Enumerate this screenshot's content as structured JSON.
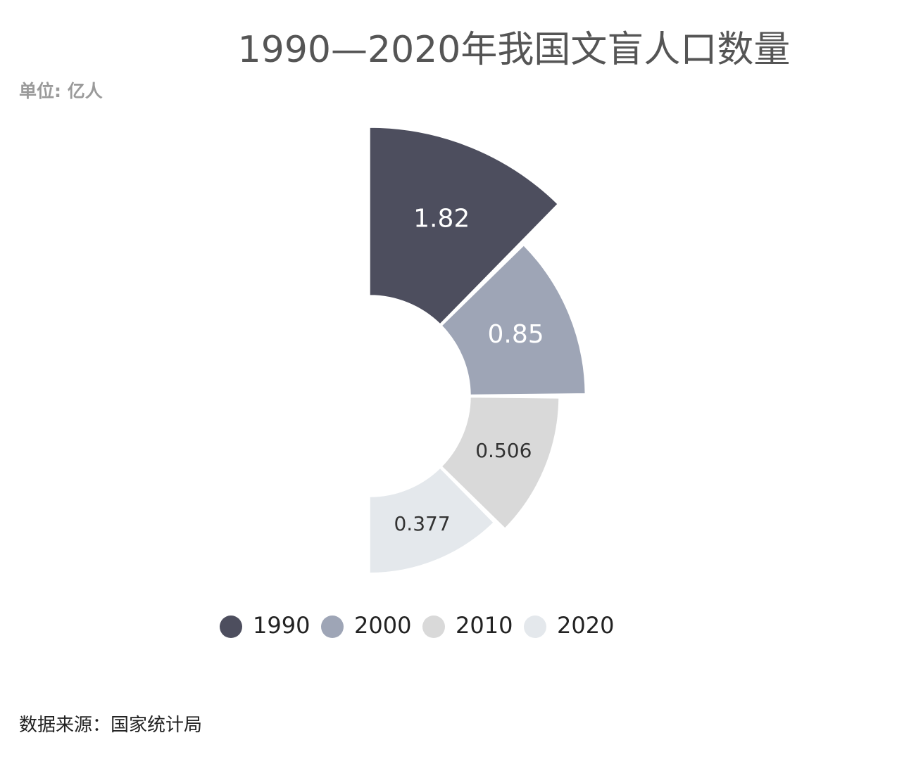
{
  "title": "1990—2020年我国文盲人口数量",
  "unit_label": "单位: 亿人",
  "source": "数据来源：国家统计局",
  "chart_data": {
    "type": "pie",
    "subtype": "rose-half",
    "title": "1990—2020年我国文盲人口数量",
    "unit": "亿人",
    "categories": [
      "1990",
      "2000",
      "2010",
      "2020"
    ],
    "values": [
      1.82,
      0.85,
      0.506,
      0.377
    ],
    "labels": [
      "1.82",
      "0.85",
      "0.506",
      "0.377"
    ],
    "colors": [
      "#4d4e5e",
      "#9ea5b6",
      "#d9d9d9",
      "#e4e8ec"
    ],
    "label_colors": [
      "#ffffff",
      "#ffffff",
      "#333333",
      "#333333"
    ],
    "legend": {
      "position": "bottom",
      "entries": [
        "1990",
        "2000",
        "2010",
        "2020"
      ]
    }
  }
}
